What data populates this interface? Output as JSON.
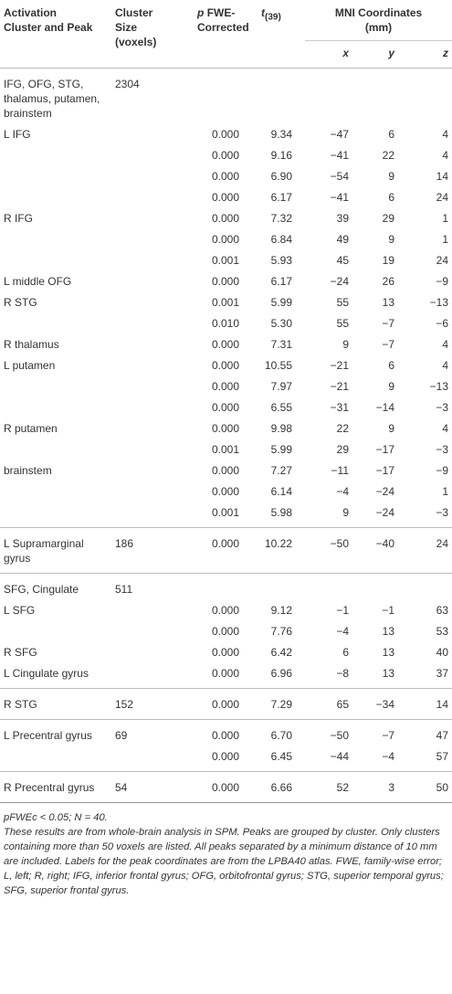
{
  "header": {
    "cluster": [
      "Activation",
      "Cluster and Peak"
    ],
    "size": [
      "Cluster",
      "Size",
      "(voxels)"
    ],
    "p": {
      "italic": "p",
      "lines": [
        "FWE-",
        "Corrected"
      ]
    },
    "t": {
      "italic": "t",
      "sub": "(39)"
    },
    "mni": [
      "MNI Coordinates",
      "(mm)"
    ],
    "coords": [
      "x",
      "y",
      "z"
    ]
  },
  "table": {
    "groups": [
      {
        "rows": [
          [
            "IFG, OFG, STG, thalamus, putamen, brainstem",
            "2304",
            null,
            null,
            null,
            null,
            null
          ],
          [
            "L IFG",
            null,
            "0.000",
            "9.34",
            "−47",
            "6",
            "4"
          ],
          [
            null,
            null,
            "0.000",
            "9.16",
            "−41",
            "22",
            "4"
          ],
          [
            null,
            null,
            "0.000",
            "6.90",
            "−54",
            "9",
            "14"
          ],
          [
            null,
            null,
            "0.000",
            "6.17",
            "−41",
            "6",
            "24"
          ],
          [
            "R IFG",
            null,
            "0.000",
            "7.32",
            "39",
            "29",
            "1"
          ],
          [
            null,
            null,
            "0.000",
            "6.84",
            "49",
            "9",
            "1"
          ],
          [
            null,
            null,
            "0.001",
            "5.93",
            "45",
            "19",
            "24"
          ],
          [
            "L middle OFG",
            null,
            "0.000",
            "6.17",
            "−24",
            "26",
            "−9"
          ],
          [
            "R STG",
            null,
            "0.001",
            "5.99",
            "55",
            "13",
            "−13"
          ],
          [
            null,
            null,
            "0.010",
            "5.30",
            "55",
            "−7",
            "−6"
          ],
          [
            "R thalamus",
            null,
            "0.000",
            "7.31",
            "9",
            "−7",
            "4"
          ],
          [
            "L putamen",
            null,
            "0.000",
            "10.55",
            "−21",
            "6",
            "4"
          ],
          [
            null,
            null,
            "0.000",
            "7.97",
            "−21",
            "9",
            "−13"
          ],
          [
            null,
            null,
            "0.000",
            "6.55",
            "−31",
            "−14",
            "−3"
          ],
          [
            "R putamen",
            null,
            "0.000",
            "9.98",
            "22",
            "9",
            "4"
          ],
          [
            null,
            null,
            "0.001",
            "5.99",
            "29",
            "−17",
            "−3"
          ],
          [
            "brainstem",
            null,
            "0.000",
            "7.27",
            "−11",
            "−17",
            "−9"
          ],
          [
            null,
            null,
            "0.000",
            "6.14",
            "−4",
            "−24",
            "1"
          ],
          [
            null,
            null,
            "0.001",
            "5.98",
            "9",
            "−24",
            "−3"
          ]
        ]
      },
      {
        "rows": [
          [
            "L Supramarginal gyrus",
            "186",
            "0.000",
            "10.22",
            "−50",
            "−40",
            "24"
          ]
        ]
      },
      {
        "rows": [
          [
            "SFG, Cingulate",
            "511",
            null,
            null,
            null,
            null,
            null
          ],
          [
            "L SFG",
            null,
            "0.000",
            "9.12",
            "−1",
            "−1",
            "63"
          ],
          [
            null,
            null,
            "0.000",
            "7.76",
            "−4",
            "13",
            "53"
          ],
          [
            "R SFG",
            null,
            "0.000",
            "6.42",
            "6",
            "13",
            "40"
          ],
          [
            "L Cingulate gyrus",
            null,
            "0.000",
            "6.96",
            "−8",
            "13",
            "37"
          ]
        ]
      },
      {
        "rows": [
          [
            "R STG",
            "152",
            "0.000",
            "7.29",
            "65",
            "−34",
            "14"
          ]
        ]
      },
      {
        "rows": [
          [
            "L Precentral gyrus",
            "69",
            "0.000",
            "6.70",
            "−50",
            "−7",
            "47"
          ],
          [
            null,
            null,
            "0.000",
            "6.45",
            "−44",
            "−4",
            "57"
          ]
        ]
      },
      {
        "rows": [
          [
            "R Precentral gyrus",
            "54",
            "0.000",
            "6.66",
            "52",
            "3",
            "50"
          ]
        ]
      }
    ]
  },
  "notes": [
    "pFWEc < 0.05; N = 40.",
    "These results are from whole-brain analysis in SPM. Peaks are grouped by cluster. Only clusters containing more than 50 voxels are listed. All peaks separated by a minimum distance of 10 mm are included. Labels for the peak coordinates are from the LPBA40 atlas. FWE, family-wise error; L, left; R, right; IFG, inferior frontal gyrus; OFG, orbitofrontal gyrus; STG, superior temporal gyrus; SFG, superior frontal gyrus."
  ]
}
